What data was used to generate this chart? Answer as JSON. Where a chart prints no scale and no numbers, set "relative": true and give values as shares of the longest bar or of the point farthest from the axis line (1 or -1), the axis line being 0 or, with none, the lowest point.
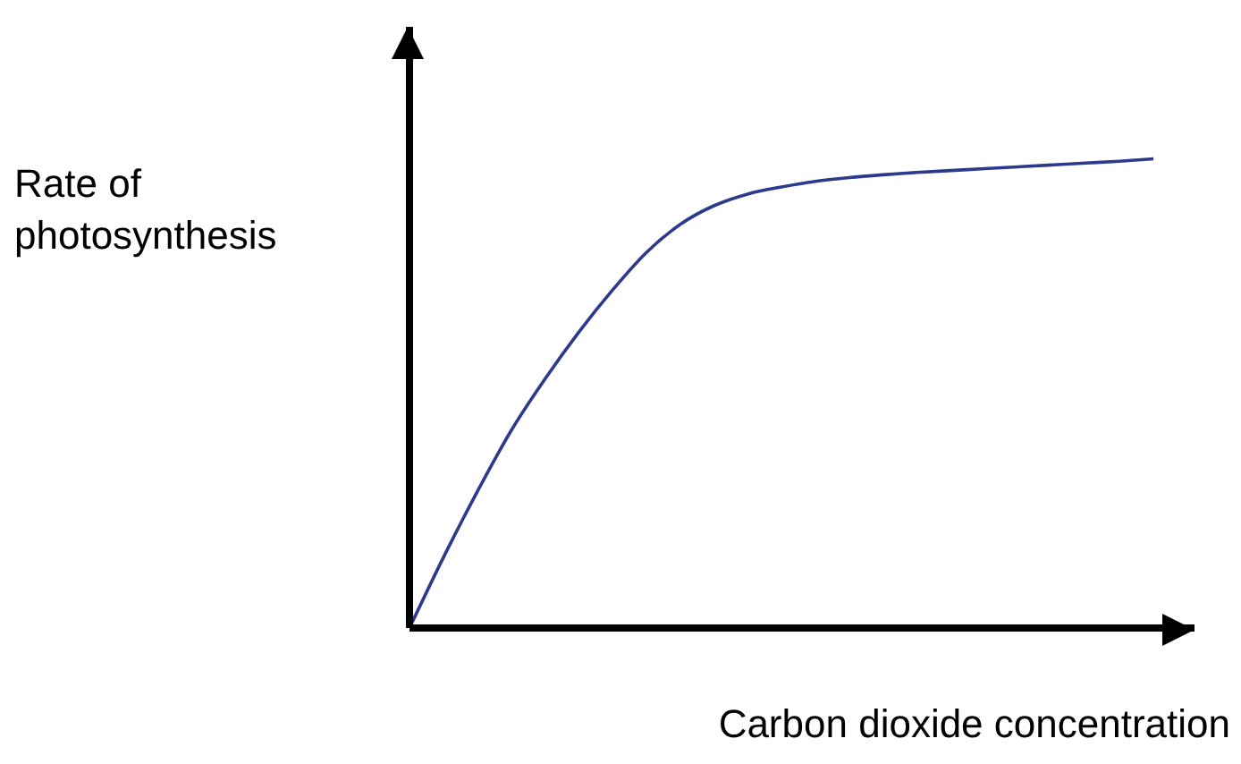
{
  "chart_data": {
    "type": "line",
    "relative": true,
    "xlabel": "Carbon dioxide concentration",
    "ylabel": "Rate of\nphotosynthesis",
    "categories": [
      null,
      null,
      null,
      null,
      null,
      null,
      null,
      null,
      null,
      null,
      null,
      null,
      null,
      null,
      null,
      null,
      null,
      null,
      null,
      null,
      null,
      null,
      null
    ],
    "series": [
      {
        "color": "#2b3a8c",
        "values": [
          0,
          0.15,
          0.29,
          0.42,
          0.53,
          0.63,
          0.72,
          0.8,
          0.86,
          0.9,
          0.925,
          0.94,
          0.952,
          0.96,
          0.966,
          0.971,
          0.975,
          0.979,
          0.983,
          0.987,
          0.991,
          0.995,
          1
        ]
      }
    ],
    "marker": "none",
    "line_style": "solid",
    "grid": false,
    "legend": false
  }
}
